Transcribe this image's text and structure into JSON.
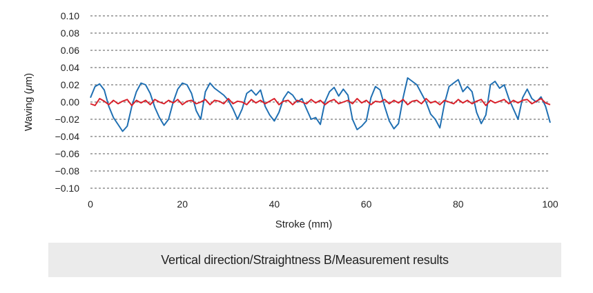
{
  "caption": "Vertical direction/Straightness B/Measurement results",
  "chart_data": {
    "type": "line",
    "xlabel": "Stroke (mm)",
    "ylabel_prefix": "Waving (",
    "ylabel_mu": "μ",
    "ylabel_suffix": "m)",
    "xlim": [
      0,
      100
    ],
    "ylim": [
      -0.1,
      0.1
    ],
    "x_ticks": [
      0,
      20,
      40,
      60,
      80,
      100
    ],
    "x_tick_labels": [
      "0",
      "20",
      "40",
      "60",
      "80",
      "100"
    ],
    "y_ticks": [
      0.1,
      0.08,
      0.06,
      0.04,
      0.02,
      0.0,
      -0.02,
      -0.04,
      -0.06,
      -0.08,
      -0.1
    ],
    "y_tick_labels": [
      "0.10",
      "0.08",
      "0.06",
      "0.04",
      "0.02",
      "0.00",
      "−0.02",
      "−0.04",
      "−0.06",
      "−0.08",
      "−0.10"
    ],
    "grid": "horizontal dashed",
    "legend": "none",
    "series": [
      {
        "color": "#1f6fb2",
        "x": [
          0,
          1,
          2,
          3,
          4,
          5,
          6,
          7,
          8,
          9,
          10,
          11,
          12,
          13,
          14,
          15,
          16,
          17,
          18,
          19,
          20,
          21,
          22,
          23,
          24,
          25,
          26,
          27,
          28,
          29,
          30,
          31,
          32,
          33,
          34,
          35,
          36,
          37,
          38,
          39,
          40,
          41,
          42,
          43,
          44,
          45,
          46,
          47,
          48,
          49,
          50,
          51,
          52,
          53,
          54,
          55,
          56,
          57,
          58,
          59,
          60,
          61,
          62,
          63,
          64,
          65,
          66,
          67,
          68,
          69,
          70,
          71,
          72,
          73,
          74,
          75,
          76,
          77,
          78,
          79,
          80,
          81,
          82,
          83,
          84,
          85,
          86,
          87,
          88,
          89,
          90,
          91,
          92,
          93,
          94,
          95,
          96,
          97,
          98,
          99,
          100
        ],
        "values": [
          0.005,
          0.018,
          0.021,
          0.014,
          -0.005,
          -0.018,
          -0.026,
          -0.034,
          -0.028,
          -0.005,
          0.012,
          0.022,
          0.02,
          0.01,
          -0.006,
          -0.018,
          -0.027,
          -0.02,
          0.0,
          0.015,
          0.022,
          0.02,
          0.01,
          -0.01,
          -0.02,
          0.012,
          0.022,
          0.016,
          0.012,
          0.008,
          0.002,
          -0.008,
          -0.02,
          -0.008,
          0.01,
          0.014,
          0.008,
          0.014,
          -0.005,
          -0.015,
          -0.022,
          -0.012,
          0.004,
          0.012,
          0.008,
          0.0,
          0.004,
          -0.008,
          -0.02,
          -0.018,
          -0.026,
          0.0,
          0.012,
          0.017,
          0.007,
          0.015,
          0.008,
          -0.02,
          -0.032,
          -0.028,
          -0.022,
          0.005,
          0.018,
          0.014,
          -0.005,
          -0.022,
          -0.031,
          -0.025,
          0.005,
          0.028,
          0.024,
          0.02,
          0.01,
          0.0,
          -0.014,
          -0.02,
          -0.03,
          -0.002,
          0.018,
          0.022,
          0.026,
          0.012,
          0.018,
          0.012,
          -0.012,
          -0.025,
          -0.015,
          0.02,
          0.024,
          0.016,
          0.02,
          0.004,
          -0.008,
          -0.02,
          0.005,
          0.015,
          0.004,
          0.0,
          0.006,
          -0.005,
          -0.024
        ]
      },
      {
        "color": "#d9202a",
        "x": [
          0,
          1,
          2,
          3,
          4,
          5,
          6,
          7,
          8,
          9,
          10,
          11,
          12,
          13,
          14,
          15,
          16,
          17,
          18,
          19,
          20,
          21,
          22,
          23,
          24,
          25,
          26,
          27,
          28,
          29,
          30,
          31,
          32,
          33,
          34,
          35,
          36,
          37,
          38,
          39,
          40,
          41,
          42,
          43,
          44,
          45,
          46,
          47,
          48,
          49,
          50,
          51,
          52,
          53,
          54,
          55,
          56,
          57,
          58,
          59,
          60,
          61,
          62,
          63,
          64,
          65,
          66,
          67,
          68,
          69,
          70,
          71,
          72,
          73,
          74,
          75,
          76,
          77,
          78,
          79,
          80,
          81,
          82,
          83,
          84,
          85,
          86,
          87,
          88,
          89,
          90,
          91,
          92,
          93,
          94,
          95,
          96,
          97,
          98,
          99,
          100
        ],
        "values": [
          -0.002,
          -0.004,
          0.004,
          0.001,
          -0.003,
          0.002,
          -0.002,
          0.001,
          0.003,
          -0.004,
          0.002,
          -0.001,
          0.002,
          -0.003,
          0.003,
          0.0,
          -0.002,
          0.002,
          -0.001,
          0.003,
          -0.003,
          0.001,
          0.002,
          -0.002,
          0.0,
          0.003,
          -0.003,
          0.002,
          0.001,
          -0.002,
          0.004,
          -0.002,
          0.001,
          0.0,
          -0.003,
          0.003,
          -0.001,
          0.002,
          -0.002,
          0.001,
          0.004,
          -0.003,
          0.001,
          0.002,
          -0.003,
          0.002,
          0.0,
          -0.002,
          0.003,
          -0.001,
          0.002,
          -0.003,
          0.001,
          0.003,
          -0.002,
          0.0,
          0.002,
          -0.002,
          0.004,
          -0.001,
          0.002,
          -0.003,
          0.001,
          0.0,
          0.003,
          -0.002,
          0.002,
          -0.001,
          0.003,
          -0.003,
          0.001,
          0.002,
          -0.002,
          0.004,
          -0.001,
          0.001,
          -0.003,
          0.002,
          0.0,
          -0.002,
          0.003,
          -0.001,
          0.002,
          -0.002,
          0.001,
          0.003,
          -0.004,
          0.002,
          -0.001,
          0.001,
          0.003,
          -0.002,
          0.002,
          -0.001,
          0.002,
          0.003,
          -0.002,
          0.001,
          0.004,
          -0.001,
          -0.003
        ]
      }
    ]
  }
}
